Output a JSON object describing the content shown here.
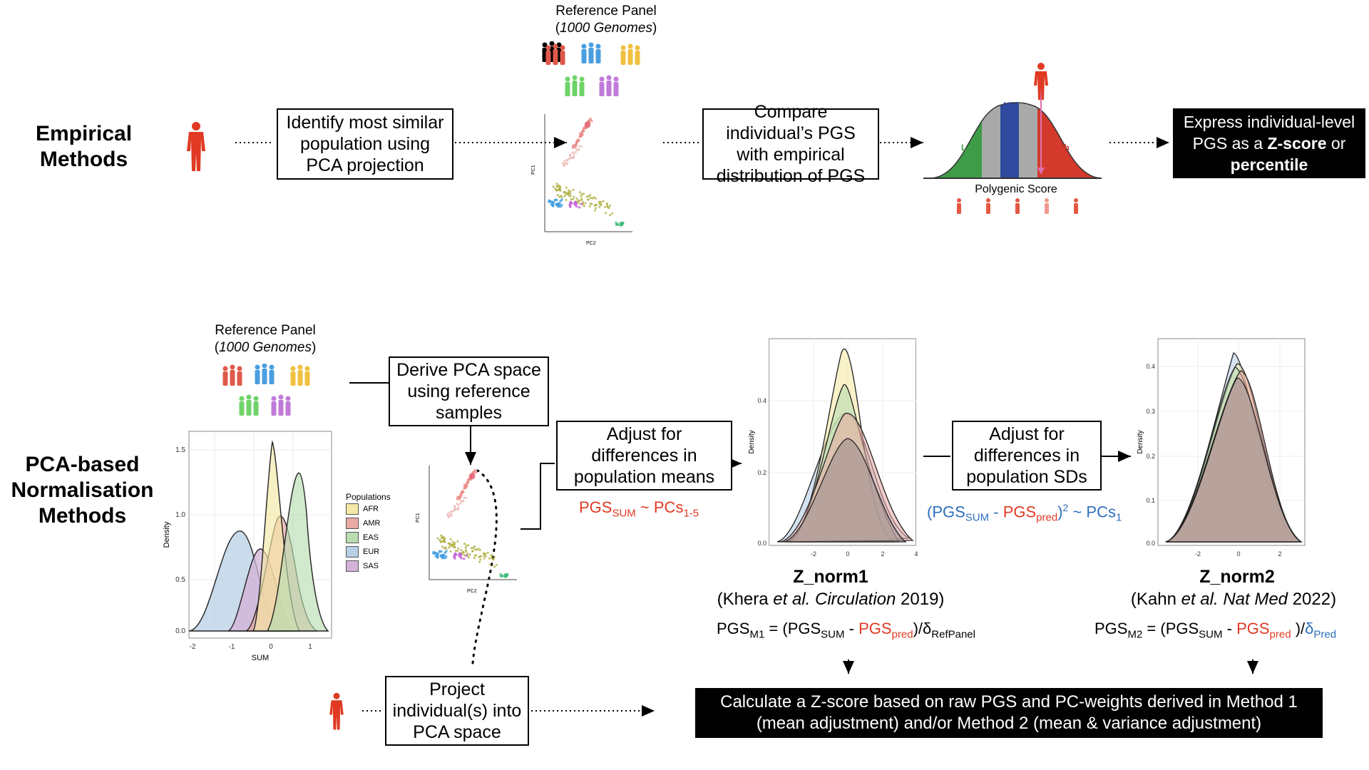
{
  "empirical": {
    "row_label": "Empirical\nMethods",
    "ref_panel_title": "Reference Panel",
    "ref_panel_subtitle": "1000 Genomes",
    "step1": "Identify most similar population using PCA projection",
    "step2": "Compare individual’s PGS with empirical distribution of PGS",
    "dist_low": "Low",
    "dist_mid": "Mid",
    "dist_high": "High",
    "dist_xlabel": "Polygenic Score",
    "result_part1": "Express individual-level PGS as a ",
    "result_bold1": "Z-score",
    "result_part2": " or ",
    "result_bold2": "percentile",
    "pca_xlabel": "PC2",
    "pca_ylabel": "PC1"
  },
  "pca_based": {
    "row_label": "PCA-based\nNormalisation\nMethods",
    "ref_panel_title": "Reference Panel",
    "ref_panel_subtitle": "1000 Genomes",
    "derive_box": "Derive PCA space using reference samples",
    "adjust_means_box": "Adjust for differences in population means",
    "adjust_sds_box": "Adjust for differences in population SDs",
    "project_box": "Project individual(s) into PCA space",
    "result_box": "Calculate a Z-score based on raw PGS and PC-weights derived in Method 1 (mean adjustment) and/or Method 2 (mean & variance adjustment)",
    "formula_means": {
      "pgs": "PGS",
      "sum_sub": "SUM",
      "tilde": " ~ PCs",
      "pcs_sub": "1-5"
    },
    "formula_sds": {
      "open": "(PGS",
      "sum_sub": "SUM",
      "minus": " - ",
      "pgs": "PGS",
      "pred_sub": "pred",
      "close_sq": ")",
      "sq": "2",
      "tilde": " ~ PCs",
      "pcs_sub": "1"
    },
    "znorm1": {
      "title": "Z_norm1",
      "cite_pre": "(Khera ",
      "cite_etal": "et al. Circulation",
      "cite_year": " 2019)"
    },
    "znorm2": {
      "title": "Z_norm2",
      "cite_pre": "(Kahn ",
      "cite_etal": "et al. Nat Med",
      "cite_year": " 2022)"
    },
    "formula_m1": {
      "pgs": "PGS",
      "m_sub": "M1",
      "eq": " = (PGS",
      "sum_sub": "SUM",
      "minus": " - ",
      "pred": "PGS",
      "pred_sub": "pred",
      "div": ")/δ",
      "ref_sub": "RefPanel"
    },
    "formula_m2": {
      "pgs": "PGS",
      "m_sub": "M2",
      "eq": " = (PGS",
      "sum_sub": "SUM",
      "minus": " - ",
      "pred": "PGS",
      "pred_sub": "pred",
      "div": " )/",
      "delta": "δ",
      "delta_sub": "Pred"
    },
    "density_plot": {
      "ylabel": "Density",
      "xlabel": "SUM",
      "legend_title": "Populations",
      "populations": [
        "AFR",
        "AMR",
        "EAS",
        "EUR",
        "SAS"
      ],
      "colors": [
        "#f3e8a5",
        "#e9a9a4",
        "#b9ddb1",
        "#b8cfe6",
        "#d3b3d6"
      ],
      "x_ticks": [
        "-2",
        "-1",
        "0",
        "1"
      ],
      "y_ticks": [
        "0.0",
        "0.5",
        "1.0",
        "1.5"
      ]
    },
    "znorm1_plot": {
      "ylabel": "Density",
      "x_ticks": [
        "-2",
        "0",
        "2",
        "4"
      ],
      "y_ticks": [
        "0.0",
        "0.2",
        "0.4"
      ]
    },
    "znorm2_plot": {
      "ylabel": "Density",
      "x_ticks": [
        "-2",
        "0",
        "2"
      ],
      "y_ticks": [
        "0.0",
        "0.1",
        "0.2",
        "0.3",
        "0.4"
      ]
    },
    "pca_xlabel": "PC2",
    "pca_ylabel": "PC1"
  }
}
